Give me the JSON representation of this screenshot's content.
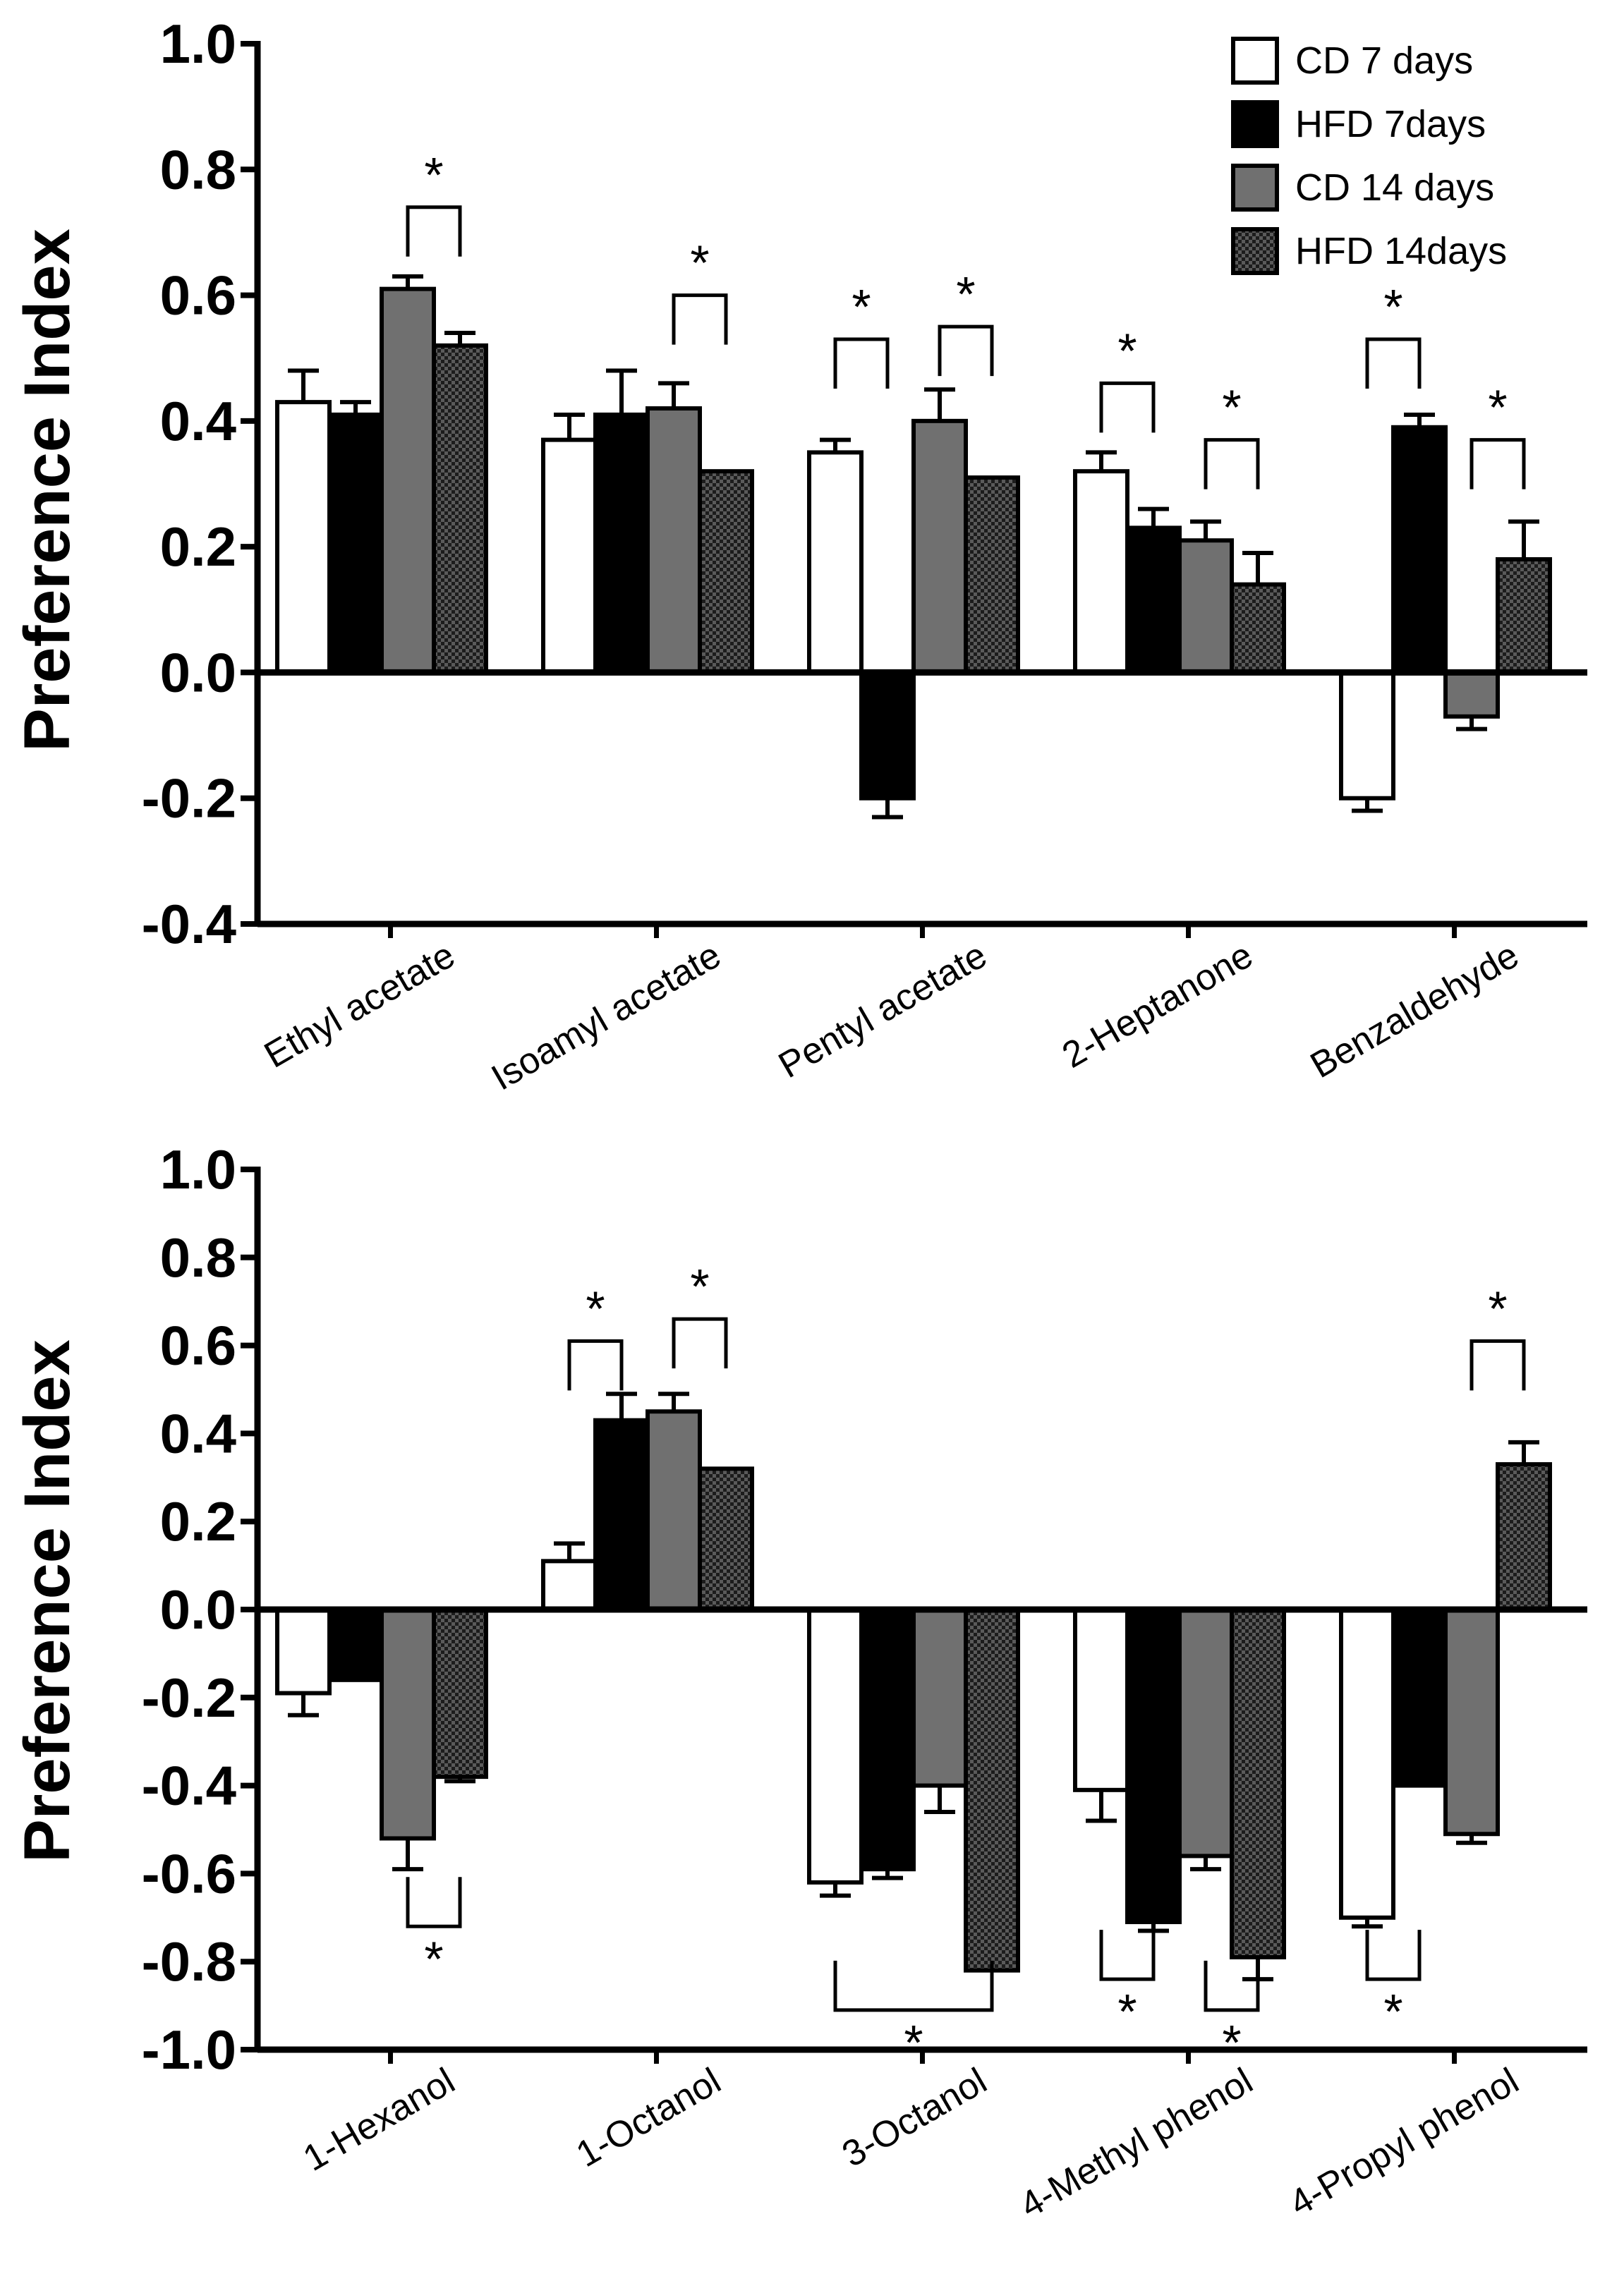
{
  "chart_data": [
    {
      "type": "bar",
      "ylabel": "Preference Index",
      "ylim": [
        -0.4,
        1.0
      ],
      "yticks": [
        "1.0",
        "0.8",
        "0.6",
        "0.4",
        "0.2",
        "0.0",
        "-0.2",
        "-0.4"
      ],
      "categories": [
        "Ethyl acetate",
        "Isoamyl acetate",
        "Pentyl acetate",
        "2-Heptanone",
        "Benzaldehyde"
      ],
      "legend": {
        "position": "top-right",
        "entries": [
          "CD 7 days",
          "HFD 7days",
          "CD 14 days",
          "HFD 14days"
        ]
      },
      "series": [
        {
          "name": "CD 7 days",
          "values": [
            0.43,
            0.37,
            0.35,
            0.32,
            -0.2
          ],
          "errors": [
            0.05,
            0.04,
            0.02,
            0.03,
            0.02
          ]
        },
        {
          "name": "HFD 7days",
          "values": [
            0.41,
            0.41,
            -0.2,
            0.23,
            0.39
          ],
          "errors": [
            0.02,
            0.07,
            0.03,
            0.03,
            0.02
          ]
        },
        {
          "name": "CD 14 days",
          "values": [
            0.61,
            0.42,
            0.4,
            0.21,
            -0.07
          ],
          "errors": [
            0.02,
            0.04,
            0.05,
            0.03,
            0.02
          ]
        },
        {
          "name": "HFD 14days",
          "values": [
            0.52,
            0.32,
            0.31,
            0.14,
            0.18
          ],
          "errors": [
            0.02,
            0.0,
            0.0,
            0.05,
            0.06
          ]
        }
      ],
      "significance": [
        {
          "category": 0,
          "pair": [
            2,
            3
          ],
          "label": "*",
          "direction": "up",
          "top": 0.74
        },
        {
          "category": 1,
          "pair": [
            2,
            3
          ],
          "label": "*",
          "direction": "up",
          "top": 0.6
        },
        {
          "category": 2,
          "pair": [
            0,
            1
          ],
          "label": "*",
          "direction": "up",
          "top": 0.53
        },
        {
          "category": 2,
          "pair": [
            2,
            3
          ],
          "label": "*",
          "direction": "up",
          "top": 0.55
        },
        {
          "category": 3,
          "pair": [
            0,
            1
          ],
          "label": "*",
          "direction": "up",
          "top": 0.46
        },
        {
          "category": 3,
          "pair": [
            2,
            3
          ],
          "label": "*",
          "direction": "up",
          "top": 0.37
        },
        {
          "category": 4,
          "pair": [
            0,
            1
          ],
          "label": "*",
          "direction": "up",
          "top": 0.53
        },
        {
          "category": 4,
          "pair": [
            2,
            3
          ],
          "label": "*",
          "direction": "up",
          "top": 0.37
        }
      ]
    },
    {
      "type": "bar",
      "ylabel": "Preference Index",
      "ylim": [
        -1.0,
        1.0
      ],
      "yticks": [
        "1.0",
        "0.8",
        "0.6",
        "0.4",
        "0.2",
        "0.0",
        "-0.2",
        "-0.4",
        "-0.6",
        "-0.8",
        "-1.0"
      ],
      "categories": [
        "1-Hexanol",
        "1-Octanol",
        "3-Octanol",
        "4-Methyl phenol",
        "4-Propyl phenol"
      ],
      "series": [
        {
          "name": "CD 7 days",
          "values": [
            -0.19,
            0.11,
            -0.62,
            -0.41,
            -0.7
          ],
          "errors": [
            0.05,
            0.04,
            0.03,
            0.07,
            0.02
          ]
        },
        {
          "name": "HFD 7days",
          "values": [
            -0.16,
            0.43,
            -0.59,
            -0.71,
            -0.4
          ],
          "errors": [
            0.0,
            0.06,
            0.02,
            0.02,
            0.0
          ]
        },
        {
          "name": "CD 14 days",
          "values": [
            -0.52,
            0.45,
            -0.4,
            -0.56,
            -0.51
          ],
          "errors": [
            0.07,
            0.04,
            0.06,
            0.03,
            0.02
          ]
        },
        {
          "name": "HFD 14days",
          "values": [
            -0.38,
            0.32,
            -0.82,
            -0.79,
            0.33
          ],
          "errors": [
            0.01,
            0.0,
            0.0,
            0.05,
            0.05
          ]
        }
      ],
      "significance": [
        {
          "category": 0,
          "pair": [
            2,
            3
          ],
          "label": "*",
          "direction": "down",
          "top": -0.72
        },
        {
          "category": 1,
          "pair": [
            0,
            1
          ],
          "label": "*",
          "direction": "up",
          "top": 0.61
        },
        {
          "category": 1,
          "pair": [
            2,
            3
          ],
          "label": "*",
          "direction": "up",
          "top": 0.66
        },
        {
          "category": 2,
          "pair": [
            0,
            3
          ],
          "label": "*",
          "direction": "down",
          "top": -0.91
        },
        {
          "category": 3,
          "pair": [
            0,
            1
          ],
          "label": "*",
          "direction": "down",
          "top": -0.84
        },
        {
          "category": 3,
          "pair": [
            2,
            3
          ],
          "label": "*",
          "direction": "down",
          "top": -0.91
        },
        {
          "category": 4,
          "pair": [
            0,
            1
          ],
          "label": "*",
          "direction": "down",
          "top": -0.84
        },
        {
          "category": 4,
          "pair": [
            2,
            3
          ],
          "label": "*",
          "direction": "up",
          "top": 0.61
        }
      ]
    }
  ]
}
